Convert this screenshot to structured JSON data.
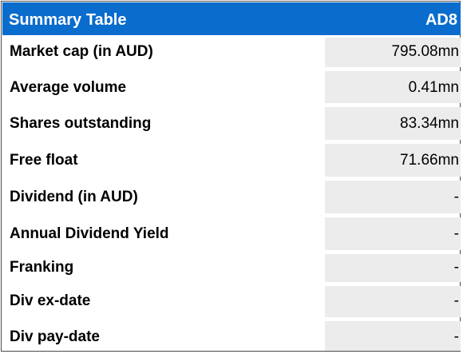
{
  "table": {
    "title": "Summary Table",
    "ticker": "AD8",
    "rows": [
      {
        "label": "Market cap (in AUD)",
        "value": "795.08mn"
      },
      {
        "label": "Average volume",
        "value": "0.41mn"
      },
      {
        "label": "Shares outstanding",
        "value": "83.34mn"
      },
      {
        "label": "Free float",
        "value": "71.66mn"
      },
      {
        "label": "Dividend (in AUD)",
        "value": "-"
      },
      {
        "label": "Annual Dividend Yield",
        "value": "-"
      },
      {
        "label": "Franking",
        "value": "-"
      },
      {
        "label": "Div ex-date",
        "value": "-"
      },
      {
        "label": "Div pay-date",
        "value": "-"
      }
    ]
  },
  "colors": {
    "header_bg": "#0a6ccc",
    "header_text": "#ffffff",
    "value_cell_bg": "#ececec",
    "border": "#4a4a4a"
  }
}
